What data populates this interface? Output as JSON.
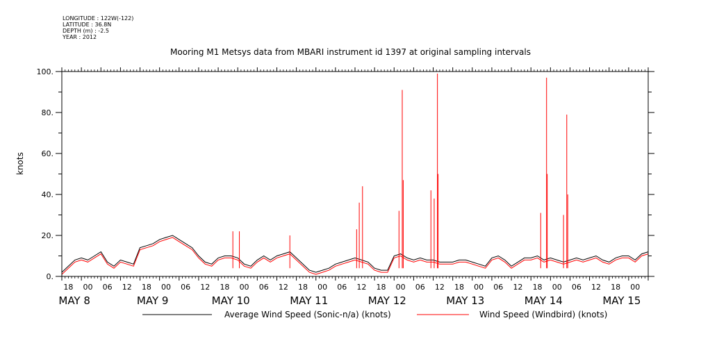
{
  "header": {
    "meta_lines": [
      "LONGITUDE : 122W(-122)",
      "LATITUDE : 36.8N",
      "DEPTH (m) : -2.5",
      "YEAR : 2012"
    ],
    "title": "Mooring M1 Metsys data from MBARI instrument id 1397 at original sampling intervals"
  },
  "chart_data": {
    "type": "line",
    "title": "Mooring M1 Metsys data from MBARI instrument id 1397 at original sampling intervals",
    "ylabel": "knots",
    "xlabel": "",
    "ylim": [
      0,
      100
    ],
    "y_ticks": [
      "0.",
      "20.",
      "40.",
      "60.",
      "80.",
      "100."
    ],
    "x_ticks": [
      "18",
      "00",
      "06",
      "12",
      "18",
      "00",
      "06",
      "12",
      "18",
      "00",
      "06",
      "12",
      "18",
      "00",
      "06",
      "12",
      "18",
      "00",
      "06",
      "12",
      "18",
      "00",
      "06",
      "12",
      "18",
      "00",
      "06",
      "12",
      "18",
      "00",
      "06",
      "12",
      "18",
      "00",
      "06",
      "12",
      "18",
      "00",
      "06",
      "12",
      "18",
      "00",
      "06",
      "12"
    ],
    "x_day_labels": [
      "MAY 8",
      "MAY 9",
      "MAY 10",
      "MAY 11",
      "MAY 12",
      "MAY 13",
      "MAY 14",
      "MAY 15"
    ],
    "x_day_hours": [
      6,
      30,
      54,
      78,
      102,
      126,
      150,
      174
    ],
    "xlim_hours": [
      0,
      180
    ],
    "series": [
      {
        "name": "Average Wind Speed (Sonic-n/a) (knots)",
        "color": "#000000",
        "x_hours": [
          0,
          2,
          4,
          6,
          8,
          10,
          12,
          14,
          16,
          18,
          20,
          22,
          24,
          26,
          28,
          30,
          32,
          34,
          36,
          38,
          40,
          42,
          44,
          46,
          48,
          50,
          52,
          54,
          56,
          58,
          60,
          62,
          64,
          66,
          68,
          70,
          72,
          74,
          76,
          78,
          80,
          82,
          84,
          86,
          88,
          90,
          92,
          94,
          96,
          98,
          100,
          102,
          104,
          106,
          108,
          110,
          112,
          114,
          116,
          118,
          120,
          122,
          124,
          126,
          128,
          130,
          132,
          134,
          136,
          138,
          140,
          142,
          144,
          146,
          148,
          150,
          152,
          154,
          156,
          158,
          160,
          162,
          164,
          166,
          168,
          170,
          172,
          174,
          176,
          178,
          180
        ],
        "values": [
          2,
          5,
          8,
          9,
          8,
          10,
          12,
          7,
          5,
          8,
          7,
          6,
          14,
          15,
          16,
          18,
          19,
          20,
          18,
          16,
          14,
          10,
          7,
          6,
          9,
          10,
          10,
          9,
          6,
          5,
          8,
          10,
          8,
          10,
          11,
          12,
          9,
          6,
          3,
          2,
          3,
          4,
          6,
          7,
          8,
          9,
          8,
          7,
          4,
          3,
          3,
          10,
          11,
          9,
          8,
          9,
          8,
          8,
          7,
          7,
          7,
          8,
          8,
          7,
          6,
          5,
          9,
          10,
          8,
          5,
          7,
          9,
          9,
          10,
          8,
          9,
          8,
          7,
          8,
          9,
          8,
          9,
          10,
          8,
          7,
          9,
          10,
          10,
          8,
          11,
          12
        ]
      },
      {
        "name": "Wind Speed (Windbird) (knots)",
        "color": "#ff0000",
        "x_hours": [
          0,
          2,
          4,
          6,
          8,
          10,
          12,
          14,
          16,
          18,
          20,
          22,
          24,
          26,
          28,
          30,
          32,
          34,
          36,
          38,
          40,
          42,
          44,
          46,
          48,
          50,
          52,
          54,
          56,
          58,
          60,
          62,
          64,
          66,
          68,
          70,
          72,
          74,
          76,
          78,
          80,
          82,
          84,
          86,
          88,
          90,
          92,
          94,
          96,
          98,
          100,
          102,
          104,
          106,
          108,
          110,
          112,
          114,
          116,
          118,
          120,
          122,
          124,
          126,
          128,
          130,
          132,
          134,
          136,
          138,
          140,
          142,
          144,
          146,
          148,
          150,
          152,
          154,
          156,
          158,
          160,
          162,
          164,
          166,
          168,
          170,
          172,
          174,
          176,
          178,
          180
        ],
        "values": [
          1,
          4,
          7,
          8,
          7,
          9,
          11,
          6,
          4,
          7,
          6,
          5,
          13,
          14,
          15,
          17,
          18,
          19,
          17,
          15,
          13,
          9,
          6,
          5,
          8,
          9,
          9,
          8,
          5,
          4,
          7,
          9,
          7,
          9,
          10,
          11,
          8,
          5,
          2,
          1,
          2,
          3,
          5,
          6,
          7,
          8,
          7,
          6,
          3,
          2,
          2,
          9,
          10,
          8,
          7,
          8,
          7,
          7,
          6,
          6,
          6,
          7,
          7,
          6,
          5,
          4,
          8,
          9,
          7,
          4,
          6,
          8,
          8,
          9,
          7,
          8,
          7,
          6,
          7,
          8,
          7,
          8,
          9,
          7,
          6,
          8,
          9,
          9,
          7,
          10,
          11
        ],
        "spikes": [
          {
            "x_hour": 52.5,
            "value": 22
          },
          {
            "x_hour": 54.5,
            "value": 22
          },
          {
            "x_hour": 70,
            "value": 20
          },
          {
            "x_hour": 90.5,
            "value": 23
          },
          {
            "x_hour": 91.3,
            "value": 36
          },
          {
            "x_hour": 92.3,
            "value": 44
          },
          {
            "x_hour": 103.5,
            "value": 32
          },
          {
            "x_hour": 104.5,
            "value": 91
          },
          {
            "x_hour": 104.8,
            "value": 47
          },
          {
            "x_hour": 113.3,
            "value": 42
          },
          {
            "x_hour": 114.3,
            "value": 38
          },
          {
            "x_hour": 115.3,
            "value": 99
          },
          {
            "x_hour": 115.5,
            "value": 50
          },
          {
            "x_hour": 147,
            "value": 31
          },
          {
            "x_hour": 148.8,
            "value": 97
          },
          {
            "x_hour": 149,
            "value": 50
          },
          {
            "x_hour": 154,
            "value": 30
          },
          {
            "x_hour": 155,
            "value": 79
          },
          {
            "x_hour": 155.3,
            "value": 40
          }
        ]
      }
    ]
  }
}
